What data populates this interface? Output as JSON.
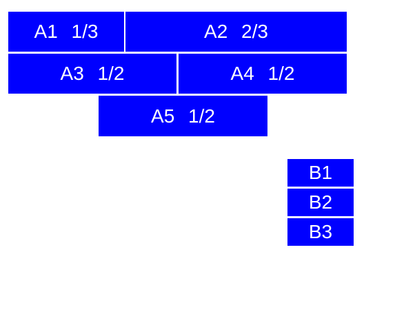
{
  "colors": {
    "page_background": "#ffffff",
    "box_background": "#0000ff",
    "box_text": "#ffffff"
  },
  "boxes": {
    "a1": {
      "label": "A1 1/3"
    },
    "a2": {
      "label": "A2 2/3"
    },
    "a3": {
      "label": "A3 1/2"
    },
    "a4": {
      "label": "A4 1/2"
    },
    "a5": {
      "label": "A5 1/2"
    },
    "b1": {
      "label": "B1"
    },
    "b2": {
      "label": "B2"
    },
    "b3": {
      "label": "B3"
    }
  }
}
